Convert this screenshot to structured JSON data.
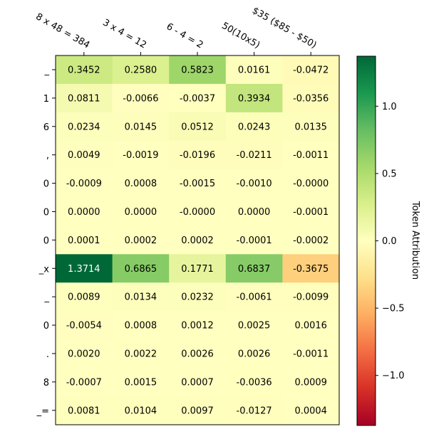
{
  "chart_data": {
    "type": "heatmap",
    "title": "",
    "x_categories": [
      "8 x 48 = 384",
      "3 x 4 = 12",
      "6 - 4 = 2",
      "50(10x5)",
      "$35 ($85 - $50)"
    ],
    "y_categories": [
      "_",
      "1",
      "6",
      ",",
      "0",
      "0",
      "0",
      "_x",
      "_",
      "0",
      ".",
      "8",
      "_="
    ],
    "values": [
      [
        0.3452,
        0.258,
        0.5823,
        0.0161,
        -0.0472
      ],
      [
        0.0811,
        -0.0066,
        -0.0037,
        0.3934,
        -0.0356
      ],
      [
        0.0234,
        0.0145,
        0.0512,
        0.0243,
        0.0135
      ],
      [
        0.0049,
        -0.0019,
        -0.0196,
        -0.0211,
        -0.0011
      ],
      [
        -0.0009,
        0.0008,
        -0.0015,
        -0.001,
        -0.0
      ],
      [
        0.0,
        0.0,
        -0.0,
        0.0,
        -0.0001
      ],
      [
        0.0001,
        0.0002,
        0.0002,
        -0.0001,
        -0.0002
      ],
      [
        1.3714,
        0.6865,
        0.1771,
        0.6837,
        -0.3675
      ],
      [
        0.0089,
        0.0134,
        0.0232,
        -0.0061,
        -0.0099
      ],
      [
        -0.0054,
        0.0008,
        0.0012,
        0.0025,
        0.0016
      ],
      [
        0.002,
        0.0022,
        0.0026,
        0.0026,
        -0.0011
      ],
      [
        -0.0007,
        0.0015,
        0.0007,
        -0.0036,
        0.0009
      ],
      [
        0.0081,
        0.0104,
        0.0097,
        -0.0127,
        0.0004
      ]
    ],
    "value_labels": [
      [
        "0.3452",
        "0.2580",
        "0.5823",
        "0.0161",
        "-0.0472"
      ],
      [
        "0.0811",
        "-0.0066",
        "-0.0037",
        "0.3934",
        "-0.0356"
      ],
      [
        "0.0234",
        "0.0145",
        "0.0512",
        "0.0243",
        "0.0135"
      ],
      [
        "0.0049",
        "-0.0019",
        "-0.0196",
        "-0.0211",
        "-0.0011"
      ],
      [
        "-0.0009",
        "0.0008",
        "-0.0015",
        "-0.0010",
        "-0.0000"
      ],
      [
        "0.0000",
        "0.0000",
        "-0.0000",
        "0.0000",
        "-0.0001"
      ],
      [
        "0.0001",
        "0.0002",
        "0.0002",
        "-0.0001",
        "-0.0002"
      ],
      [
        "1.3714",
        "0.6865",
        "0.1771",
        "0.6837",
        "-0.3675"
      ],
      [
        "0.0089",
        "0.0134",
        "0.0232",
        "-0.0061",
        "-0.0099"
      ],
      [
        "-0.0054",
        "0.0008",
        "0.0012",
        "0.0025",
        "0.0016"
      ],
      [
        "0.0020",
        "0.0022",
        "0.0026",
        "0.0026",
        "-0.0011"
      ],
      [
        "-0.0007",
        "0.0015",
        "0.0007",
        "-0.0036",
        "0.0009"
      ],
      [
        "0.0081",
        "0.0104",
        "0.0097",
        "-0.0127",
        "0.0004"
      ]
    ],
    "colorbar": {
      "label": "Token Attribution",
      "range": [
        -1.3714,
        1.3714
      ],
      "ticks": [
        1.0,
        0.5,
        0.0,
        -0.5,
        -1.0
      ],
      "tick_labels": [
        "1.0",
        "0.5",
        "0.0",
        "−0.5",
        "−1.0"
      ],
      "colormap": "RdYlGn",
      "colormap_stops": [
        "#a50026",
        "#d73027",
        "#f46d43",
        "#fdae61",
        "#fee08b",
        "#ffffbf",
        "#d9ef8b",
        "#a6d96a",
        "#66bd63",
        "#1a9850",
        "#006837"
      ]
    },
    "text_color_dark": "#000000",
    "text_color_light": "#ffffff"
  }
}
